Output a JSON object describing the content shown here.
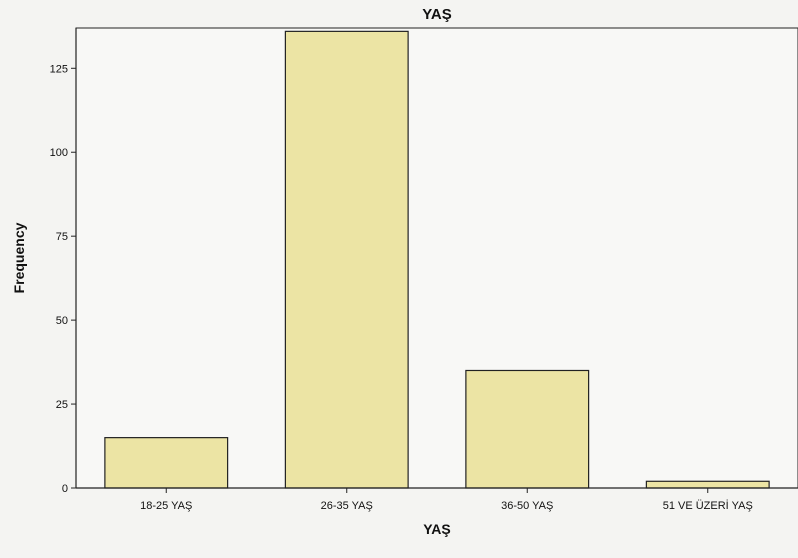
{
  "chart_data": {
    "type": "bar",
    "title": "YAŞ",
    "xlabel": "YAŞ",
    "ylabel": "Frequency",
    "categories": [
      "18-25 YAŞ",
      "26-35 YAŞ",
      "36-50 YAŞ",
      "51 VE ÜZERİ YAŞ"
    ],
    "values": [
      15,
      136,
      35,
      2
    ],
    "ylim": [
      0,
      137
    ],
    "yticks": [
      0,
      25,
      50,
      75,
      100,
      125
    ],
    "grid": false,
    "colors": {
      "bar_fill": "#ece4a4",
      "bar_stroke": "#222222",
      "plot_background": "#f8f8f6",
      "axis": "#222222"
    }
  }
}
